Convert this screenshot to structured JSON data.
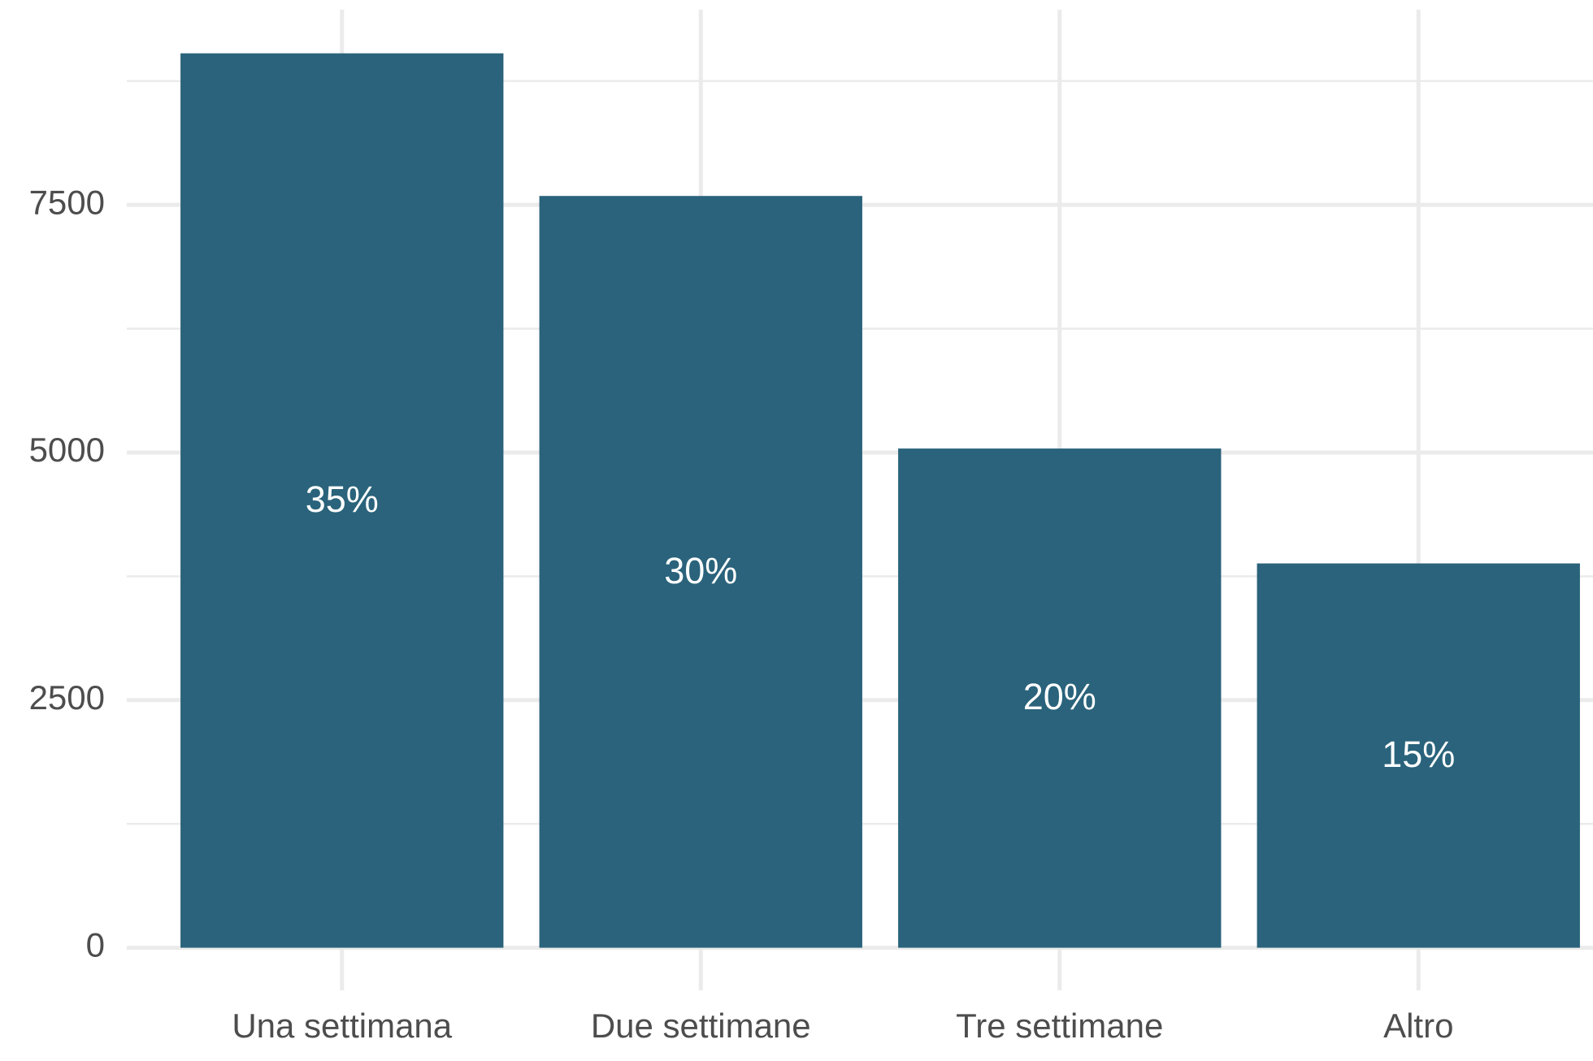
{
  "chart_data": {
    "type": "bar",
    "categories": [
      "Una settimana",
      "Due settimane",
      "Tre settimane",
      "Altro"
    ],
    "values": [
      9030,
      7590,
      5040,
      3880
    ],
    "share": {
      "values": [
        35,
        30,
        20,
        15
      ],
      "value_labels": [
        "35%",
        "30%",
        "20%",
        "15%"
      ]
    },
    "color": "#2a637b",
    "ylim": [
      -430,
      9470
    ],
    "yticks": [
      0,
      2500,
      5000,
      7500
    ],
    "minor_yticks": [
      1250,
      3750,
      6250,
      8750
    ],
    "grid": true
  }
}
